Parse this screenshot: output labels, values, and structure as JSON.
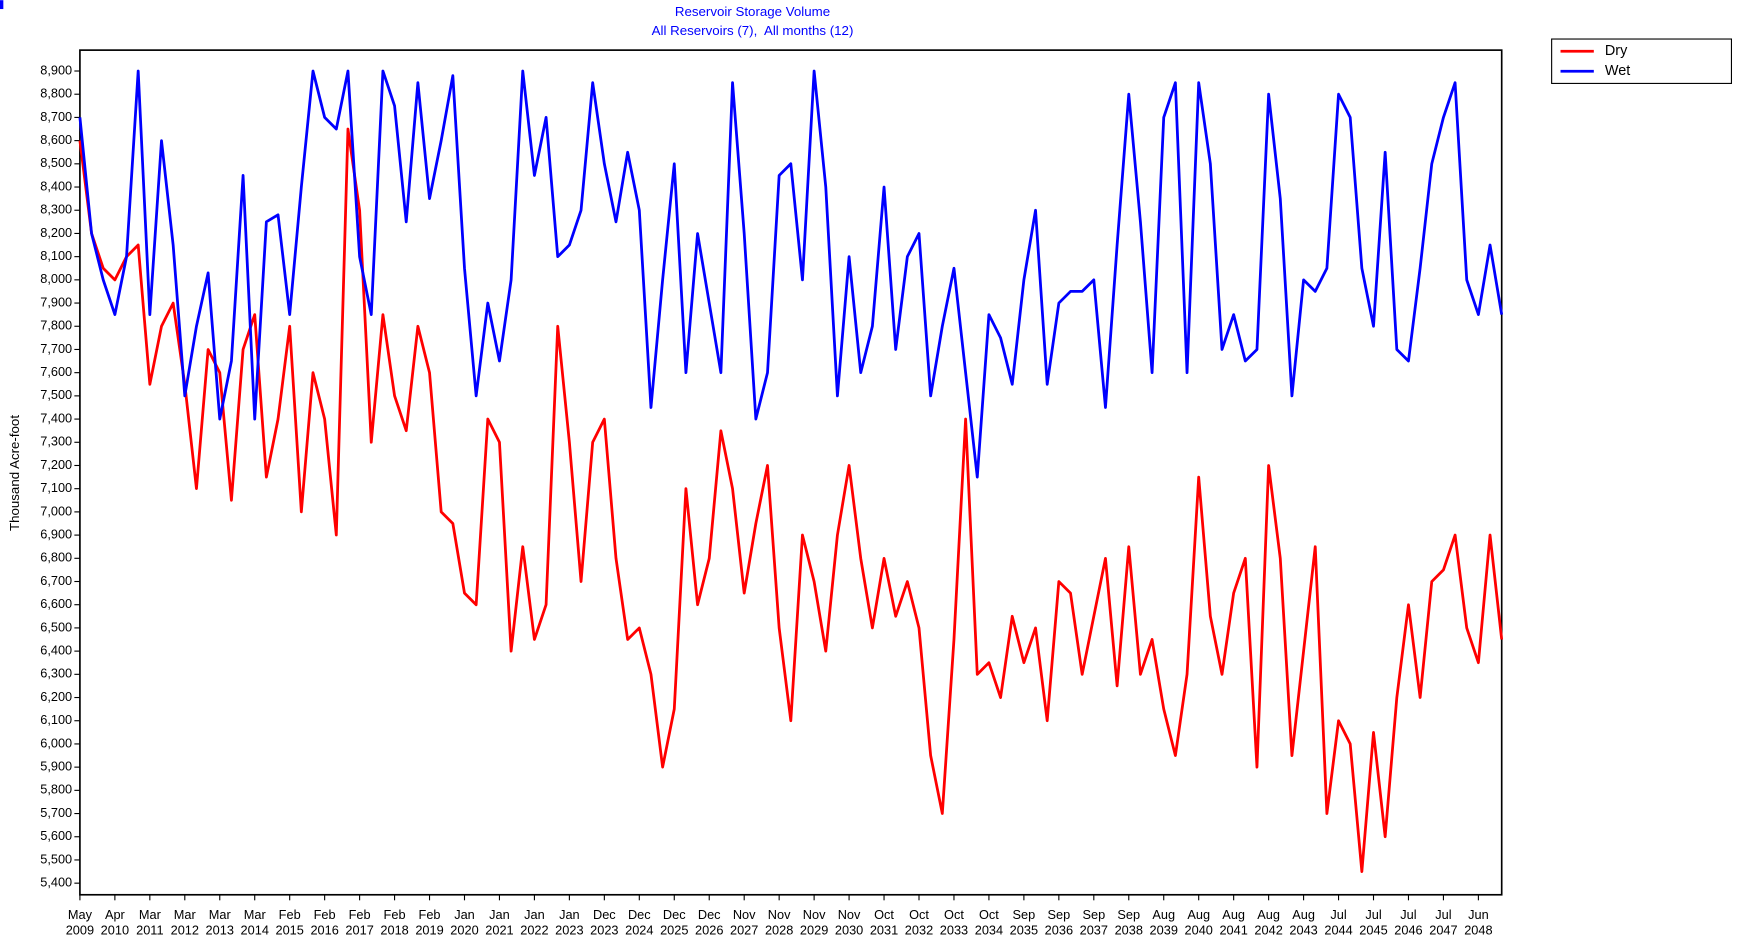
{
  "chart_data": {
    "type": "line",
    "title": "Reservoir Storage Volume",
    "subtitle": "All Reservoirs (7),  All months (12)",
    "y_label": "Thousand Acre-foot",
    "categories": [
      "May 2009",
      null,
      null,
      "Apr 2010",
      null,
      null,
      "Mar 2011",
      null,
      null,
      "Mar 2012",
      null,
      null,
      "Mar 2013",
      null,
      null,
      "Mar 2014",
      null,
      null,
      "Feb 2015",
      null,
      null,
      "Feb 2016",
      null,
      null,
      "Feb 2017",
      null,
      null,
      "Feb 2018",
      null,
      null,
      "Feb 2019",
      null,
      null,
      "Jan 2020",
      null,
      null,
      "Jan 2021",
      null,
      null,
      "Jan 2022",
      null,
      null,
      "Jan 2023",
      null,
      null,
      "Dec 2023",
      null,
      null,
      "Dec 2024",
      null,
      null,
      "Dec 2025",
      null,
      null,
      "Dec 2026",
      null,
      null,
      "Nov 2027",
      null,
      null,
      "Nov 2028",
      null,
      null,
      "Nov 2029",
      null,
      null,
      "Nov 2030",
      null,
      null,
      "Oct 2031",
      null,
      null,
      "Oct 2032",
      null,
      null,
      "Oct 2033",
      null,
      null,
      "Oct 2034",
      null,
      null,
      "Sep 2035",
      null,
      null,
      "Sep 2036",
      null,
      null,
      "Sep 2037",
      null,
      null,
      "Sep 2038",
      null,
      null,
      "Aug 2039",
      null,
      null,
      "Aug 2040",
      null,
      null,
      "Aug 2041",
      null,
      null,
      "Aug 2042",
      null,
      null,
      "Aug 2043",
      null,
      null,
      "Jul 2044",
      null,
      null,
      "Jul 2045",
      null,
      null,
      "Jul 2046",
      null,
      null,
      "Jul 2047",
      null,
      null,
      "Jun 2048",
      null,
      null
    ],
    "series": [
      {
        "name": "Dry",
        "color": "#ff0000",
        "values": [
          8600,
          8200,
          8050,
          8000,
          8100,
          8150,
          7550,
          7800,
          7900,
          7550,
          7100,
          7700,
          7600,
          7050,
          7700,
          7850,
          7150,
          7400,
          7800,
          7000,
          7600,
          7400,
          6900,
          8650,
          8300,
          7300,
          7850,
          7500,
          7350,
          7800,
          7600,
          7000,
          6950,
          6650,
          6600,
          7400,
          7300,
          6400,
          6850,
          6450,
          6600,
          7800,
          7300,
          6700,
          7300,
          7400,
          6800,
          6450,
          6500,
          6300,
          5900,
          6150,
          7100,
          6600,
          6800,
          7350,
          7100,
          6650,
          6950,
          7200,
          6500,
          6100,
          6900,
          6700,
          6400,
          6900,
          7200,
          6800,
          6500,
          6800,
          6550,
          6700,
          6500,
          5950,
          5700,
          6450,
          7400,
          6300,
          6350,
          6200,
          6550,
          6350,
          6500,
          6100,
          6700,
          6650,
          6300,
          6550,
          6800,
          6250,
          6850,
          6300,
          6450,
          6150,
          5950,
          6300,
          7150,
          6550,
          6300,
          6650,
          6800,
          5900,
          7200,
          6800,
          5950,
          6400,
          6850,
          5700,
          6100,
          6000,
          5450,
          6050,
          5600,
          6200,
          6600,
          6200,
          6700,
          6750,
          6900,
          6500,
          6350,
          6900,
          6450
        ]
      },
      {
        "name": "Wet",
        "color": "#0000ff",
        "values": [
          8700,
          8200,
          8000,
          7850,
          8100,
          8900,
          7850,
          8600,
          8150,
          7500,
          7800,
          8030,
          7400,
          7650,
          8450,
          7400,
          8250,
          8280,
          7850,
          8400,
          8900,
          8700,
          8650,
          8900,
          8100,
          7850,
          8900,
          8750,
          8250,
          8850,
          8350,
          8600,
          8880,
          8050,
          7500,
          7900,
          7650,
          8000,
          8900,
          8450,
          8700,
          8100,
          8150,
          8300,
          8850,
          8500,
          8250,
          8550,
          8300,
          7450,
          8000,
          8500,
          7600,
          8200,
          7900,
          7600,
          8850,
          8200,
          7400,
          7600,
          8450,
          8500,
          8000,
          8900,
          8400,
          7500,
          8100,
          7600,
          7800,
          8400,
          7700,
          8100,
          8200,
          7500,
          7800,
          8050,
          7600,
          7150,
          7850,
          7750,
          7550,
          8000,
          8300,
          7550,
          7900,
          7950,
          7950,
          8000,
          7450,
          8150,
          8800,
          8250,
          7600,
          8700,
          8850,
          7600,
          8850,
          8500,
          7700,
          7850,
          7650,
          7700,
          8800,
          8350,
          7500,
          8000,
          7950,
          8050,
          8800,
          8700,
          8050,
          7800,
          8550,
          7700,
          7650,
          8050,
          8500,
          8700,
          8850,
          8000,
          7850,
          8150,
          7850
        ]
      }
    ],
    "ylim": [
      5350,
      8990
    ],
    "yticks": [
      {
        "value": 5400,
        "label": "5,400"
      },
      {
        "value": 5500,
        "label": "5,500"
      },
      {
        "value": 5600,
        "label": "5,600"
      },
      {
        "value": 5700,
        "label": "5,700"
      },
      {
        "value": 5800,
        "label": "5,800"
      },
      {
        "value": 5900,
        "label": "5,900"
      },
      {
        "value": 6000,
        "label": "6,000"
      },
      {
        "value": 6100,
        "label": "6,100"
      },
      {
        "value": 6200,
        "label": "6,200"
      },
      {
        "value": 6300,
        "label": "6,300"
      },
      {
        "value": 6400,
        "label": "6,400"
      },
      {
        "value": 6500,
        "label": "6,500"
      },
      {
        "value": 6600,
        "label": "6,600"
      },
      {
        "value": 6700,
        "label": "6,700"
      },
      {
        "value": 6800,
        "label": "6,800"
      },
      {
        "value": 6900,
        "label": "6,900"
      },
      {
        "value": 7000,
        "label": "7,000"
      },
      {
        "value": 7100,
        "label": "7,100"
      },
      {
        "value": 7200,
        "label": "7,200"
      },
      {
        "value": 7300,
        "label": "7,300"
      },
      {
        "value": 7400,
        "label": "7,400"
      },
      {
        "value": 7500,
        "label": "7,500"
      },
      {
        "value": 7600,
        "label": "7,600"
      },
      {
        "value": 7700,
        "label": "7,700"
      },
      {
        "value": 7800,
        "label": "7,800"
      },
      {
        "value": 7900,
        "label": "7,900"
      },
      {
        "value": 8000,
        "label": "8,000"
      },
      {
        "value": 8100,
        "label": "8,100"
      },
      {
        "value": 8200,
        "label": "8,200"
      },
      {
        "value": 8300,
        "label": "8,300"
      },
      {
        "value": 8400,
        "label": "8,400"
      },
      {
        "value": 8500,
        "label": "8,500"
      },
      {
        "value": 8600,
        "label": "8,600"
      },
      {
        "value": 8700,
        "label": "8,700"
      },
      {
        "value": 8800,
        "label": "8,800"
      },
      {
        "value": 8900,
        "label": "8,900"
      }
    ],
    "grid": false,
    "legend": "outside-top-right"
  }
}
